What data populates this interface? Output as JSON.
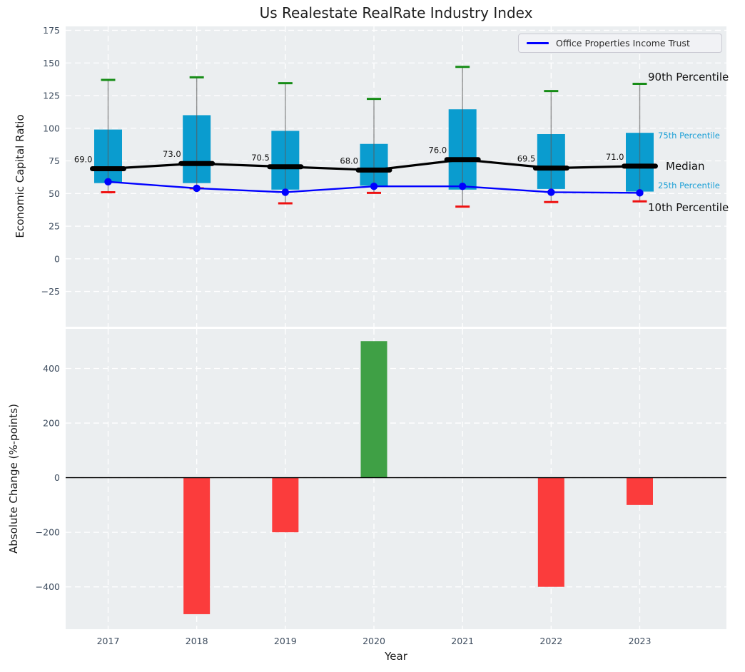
{
  "chart_data": {
    "type": [
      "box-percentile-with-line",
      "bar"
    ],
    "categories": [
      "2017",
      "2018",
      "2019",
      "2020",
      "2021",
      "2022",
      "2023"
    ],
    "top": {
      "title": "Us Realestate RealRate Industry Index",
      "ylabel": "Economic Capital Ratio",
      "yticks": [
        175,
        150,
        125,
        100,
        75,
        50,
        25,
        0,
        -25
      ],
      "ylim": [
        -52,
        178
      ],
      "grid": true,
      "legend": {
        "label": "Office Properties Income Trust",
        "position": "upper right"
      },
      "percentiles": {
        "p90": [
          137,
          139,
          134.5,
          122.5,
          147,
          128.5,
          134
        ],
        "p75": [
          99,
          110,
          98,
          88,
          114.5,
          95.5,
          96.5
        ],
        "median": [
          69.0,
          73.0,
          70.5,
          68.0,
          76.0,
          69.5,
          71.0
        ],
        "p25": [
          58,
          58,
          53,
          56,
          53,
          53.5,
          51.5
        ],
        "p10": [
          51,
          54,
          42.5,
          50.5,
          40,
          43.5,
          44
        ]
      },
      "median_labels": [
        "69.0",
        "73.0",
        "70.5",
        "68.0",
        "76.0",
        "69.5",
        "71.0"
      ],
      "company_line": {
        "name": "Office Properties Income Trust",
        "values": [
          59,
          54,
          51,
          55.5,
          55.5,
          51,
          50.5
        ]
      },
      "side_labels": {
        "p90": "90th Percentile",
        "p75": "75th Percentile",
        "median": "Median",
        "p25": "25th Percentile",
        "p10": "10th Percentile"
      }
    },
    "bottom": {
      "ylabel": "Absolute Change (%-points)",
      "xlabel": "Year",
      "yticks": [
        400,
        200,
        0,
        -200,
        -400
      ],
      "ylim": [
        -555,
        545
      ],
      "grid": true,
      "values": [
        0,
        -500,
        -200,
        500,
        0,
        -400,
        -100
      ]
    }
  },
  "colors": {
    "axes_bg": "#ebeef0",
    "grid": "#ffffff",
    "tick_text": "#3c4b5d",
    "box_fill": "#0a9ccf",
    "whisker": "#5a5a5a",
    "p90_cap": "#168c16",
    "p10_cap": "#ee1111",
    "median_line": "#000000",
    "company_line": "#0000ff",
    "bar_positive": "#3fa045",
    "bar_negative": "#fb3c3c",
    "annotation_cyan": "#1a9fd6",
    "zero_line": "#000000"
  }
}
